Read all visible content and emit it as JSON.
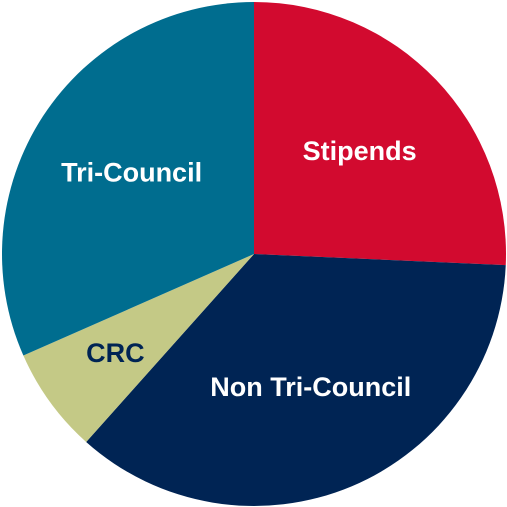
{
  "chart_data": {
    "type": "pie",
    "categories": [
      "Stipends",
      "Non Tri-Council",
      "CRC",
      "Tri-Council"
    ],
    "values": [
      25.7,
      35.9,
      6.8,
      31.6
    ],
    "colors": [
      "#d20a2f",
      "#002454",
      "#c4c986",
      "#006d8f"
    ],
    "label_colors": [
      "#ffffff",
      "#ffffff",
      "#002454",
      "#ffffff"
    ]
  }
}
